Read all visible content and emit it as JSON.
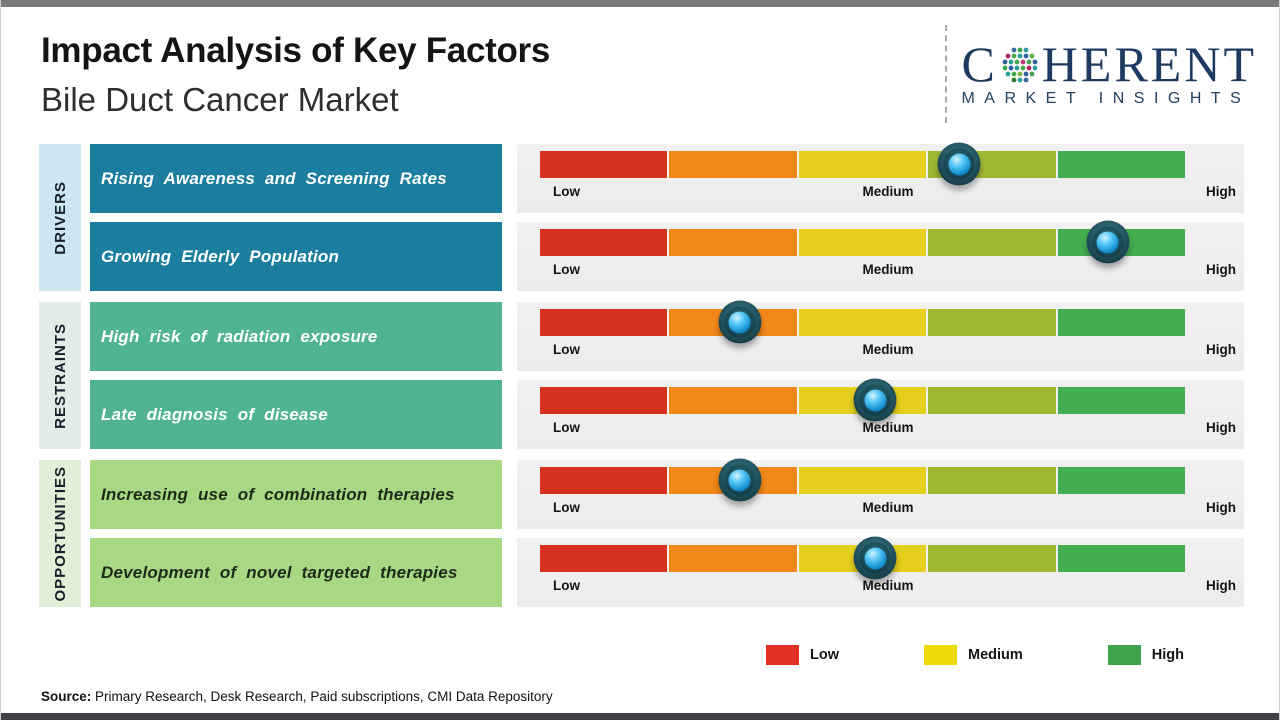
{
  "header": {
    "title": "Impact Analysis of Key Factors",
    "subtitle": "Bile Duct Cancer Market",
    "logo": {
      "brand_first_letter": "C",
      "brand_rest": "HERENT",
      "brand_sub": "MARKET INSIGHTS"
    }
  },
  "chart_data": {
    "type": "bar",
    "subtype": "impact-rating-scale",
    "title": "Impact Analysis of Key Factors",
    "scale_labels": [
      "Low",
      "Medium",
      "High"
    ],
    "scale_range": [
      0,
      1
    ],
    "segment_colors": [
      "#d8301f",
      "#f0881a",
      "#e4cf1d",
      "#9eb833",
      "#43ad4f"
    ],
    "sections": [
      {
        "name": "DRIVERS",
        "strip_color": "#cde6f2",
        "box_color": "#1b7e9e",
        "text_color": "#ffffff",
        "factors": [
          {
            "label": "Rising Awareness and Screening Rates",
            "impact": 0.65,
            "impact_level": "Medium-High"
          },
          {
            "label": "Growing Elderly Population",
            "impact": 0.88,
            "impact_level": "High"
          }
        ]
      },
      {
        "name": "RESTRAINTS",
        "strip_color": "#e1ece6",
        "box_color": "#50b494",
        "text_color": "#ffffff",
        "factors": [
          {
            "label": "High risk of radiation exposure",
            "impact": 0.31,
            "impact_level": "Low-Medium"
          },
          {
            "label": "Late diagnosis of disease",
            "impact": 0.52,
            "impact_level": "Medium"
          }
        ]
      },
      {
        "name": "OPPORTUNITIES",
        "strip_color": "#e0f0d6",
        "box_color": "#a9d884",
        "text_color": "#1e2b1a",
        "factors": [
          {
            "label": "Increasing use of combination therapies",
            "impact": 0.31,
            "impact_level": "Low-Medium"
          },
          {
            "label": "Development of novel targeted therapies",
            "impact": 0.52,
            "impact_level": "Medium"
          }
        ]
      }
    ],
    "legend": [
      {
        "label": "Low",
        "color": "#e23122"
      },
      {
        "label": "Medium",
        "color": "#eed90b"
      },
      {
        "label": "High",
        "color": "#3ea34a"
      }
    ],
    "legend_position": "bottom-right"
  },
  "footer": {
    "source_label": "Source:",
    "source_text": " Primary Research, Desk Research, Paid subscriptions, CMI Data Repository"
  }
}
